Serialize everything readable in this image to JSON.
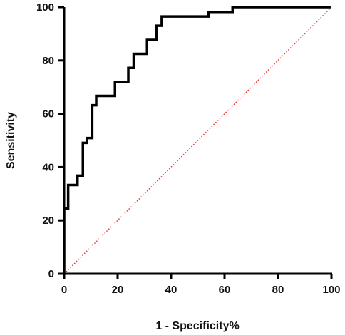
{
  "chart_data": {
    "type": "line",
    "title": "",
    "xlabel": "1 - Specificity%",
    "ylabel": "Sensitivity",
    "xlim": [
      0,
      100
    ],
    "ylim": [
      0,
      100
    ],
    "x_ticks": [
      0,
      20,
      40,
      60,
      80,
      100
    ],
    "y_ticks": [
      0,
      20,
      40,
      60,
      80,
      100
    ],
    "grid": false,
    "legend": "none",
    "series": [
      {
        "style": "solid",
        "color": "#000000",
        "x": [
          0,
          0,
          1.5,
          1.5,
          5,
          5,
          7,
          7,
          8.5,
          8.5,
          10.5,
          10.5,
          12,
          12,
          19,
          19,
          24,
          24,
          26,
          26,
          31,
          31,
          34.5,
          34.5,
          36.5,
          36.5,
          54,
          54,
          63,
          63,
          100
        ],
        "y": [
          0,
          24.5,
          24.5,
          33.3,
          33.3,
          36.8,
          36.8,
          49.1,
          49.1,
          50.9,
          50.9,
          63.2,
          63.2,
          66.7,
          66.7,
          71.9,
          71.9,
          77.2,
          77.2,
          82.5,
          82.5,
          87.7,
          87.7,
          93.0,
          93.0,
          96.5,
          96.5,
          98.2,
          98.2,
          100,
          100
        ]
      },
      {
        "style": "dotted",
        "color": "#e8302a",
        "x": [
          0,
          100
        ],
        "y": [
          0,
          100
        ]
      }
    ]
  }
}
